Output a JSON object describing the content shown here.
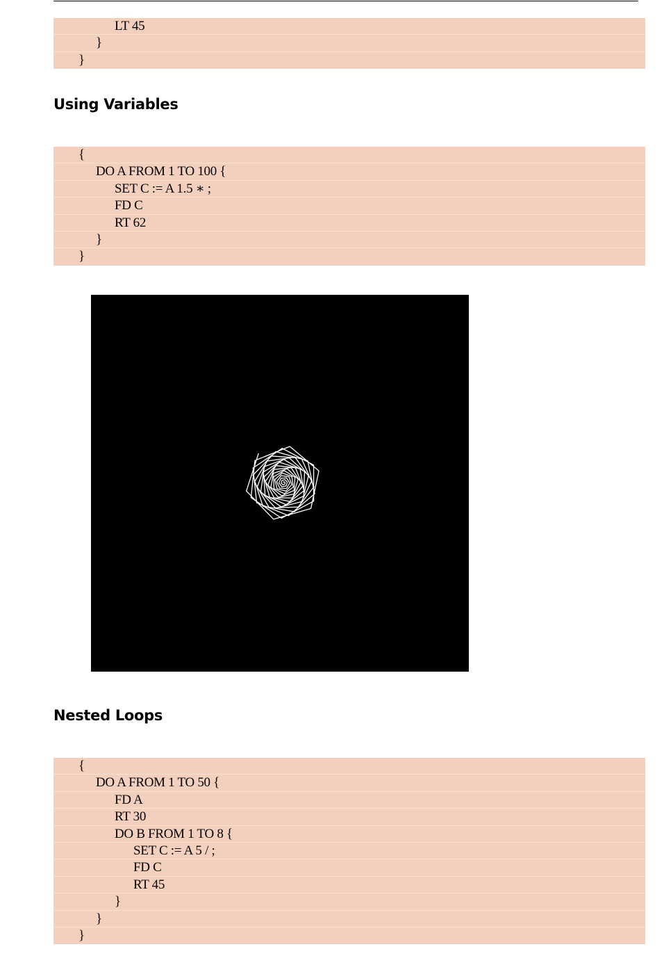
{
  "blocks": [
    {
      "lines": [
        {
          "indent": 2,
          "text": "LT 45"
        },
        {
          "indent": 1,
          "text": "}"
        },
        {
          "indent": 0,
          "text": "}"
        }
      ]
    },
    {
      "lines": [
        {
          "indent": 0,
          "text": "{"
        },
        {
          "indent": 1,
          "text": "DO A FROM 1 TO 100 {"
        },
        {
          "indent": 2,
          "text": "SET C := A 1.5 ∗ ;"
        },
        {
          "indent": 2,
          "text": "FD C"
        },
        {
          "indent": 2,
          "text": "RT 62"
        },
        {
          "indent": 1,
          "text": "}"
        },
        {
          "indent": 0,
          "text": "}"
        }
      ]
    },
    {
      "lines": [
        {
          "indent": 0,
          "text": "{"
        },
        {
          "indent": 1,
          "text": "DO A FROM 1 TO 50 {"
        },
        {
          "indent": 2,
          "text": "FD A"
        },
        {
          "indent": 2,
          "text": "RT 30"
        },
        {
          "indent": 2,
          "text": "DO B FROM 1 TO 8 {"
        },
        {
          "indent": 3,
          "text": "SET C := A 5 / ;"
        },
        {
          "indent": 3,
          "text": "FD C"
        },
        {
          "indent": 3,
          "text": "RT 45"
        },
        {
          "indent": 2,
          "text": "}"
        },
        {
          "indent": 1,
          "text": "}"
        },
        {
          "indent": 0,
          "text": "}"
        }
      ]
    }
  ],
  "headings": {
    "variables": "Using Variables",
    "nested": "Nested Loops"
  },
  "figure": {
    "background": "#000000",
    "stroke": "#ffffff",
    "turtle": {
      "steps": 100,
      "multiplier": 1.5,
      "turn_degrees": 62
    }
  },
  "colors": {
    "code_background": "#f3d0bd"
  }
}
